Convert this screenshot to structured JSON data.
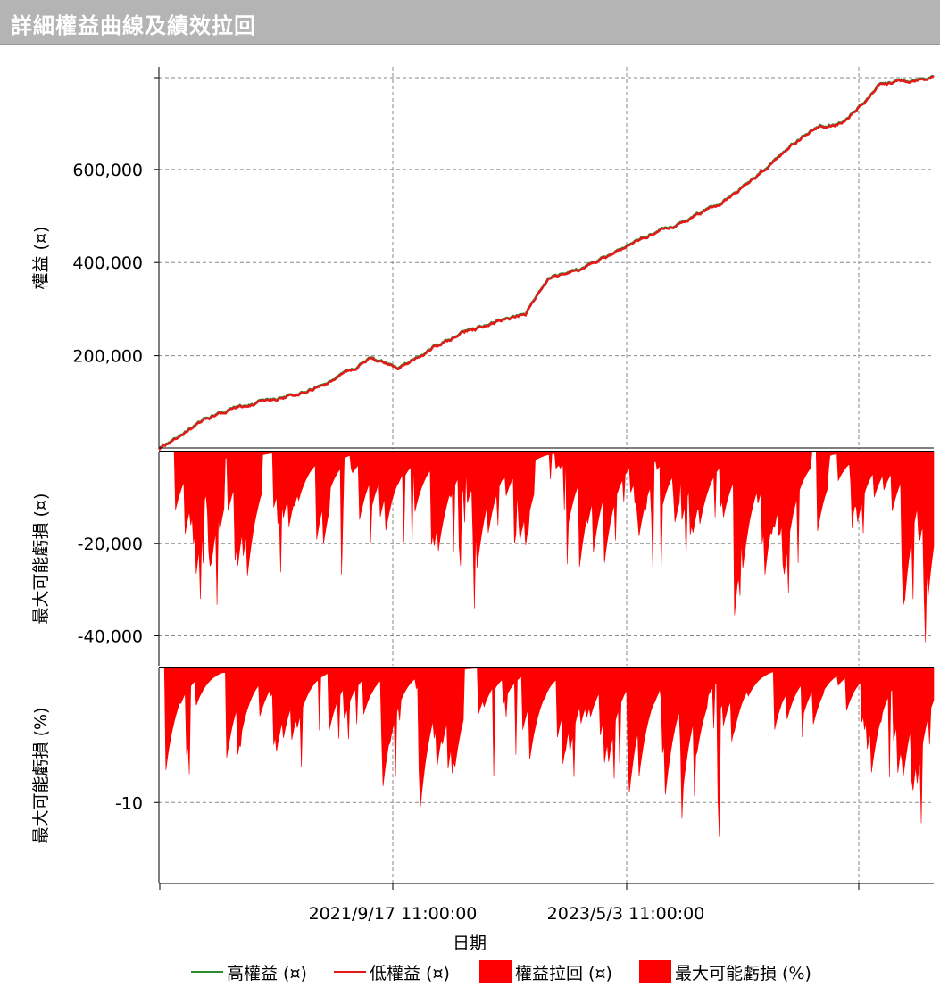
{
  "window": {
    "title": "詳細權益曲線及績效拉回"
  },
  "colors": {
    "equity_high": "#2e8b2e",
    "equity_low": "#e41a1a",
    "drawdown_fill": "#ff0000",
    "grid": "#8a8a8a",
    "axis": "#000000"
  },
  "chart_data": [
    {
      "panel": "equity",
      "type": "line",
      "ylabel": "權益 (¤)",
      "ylim": [
        0,
        820000
      ],
      "yticks": [
        200000,
        400000,
        600000
      ],
      "ytick_labels": [
        "200,000",
        "400,000",
        "600,000"
      ],
      "xlim": [
        "2020-01-19",
        "2026-02-08"
      ],
      "series": [
        {
          "name": "高權益 (¤)",
          "color": "#2e8b2e"
        },
        {
          "name": "低權益 (¤)",
          "color": "#e41a1a"
        }
      ],
      "x": [
        "2020-01-19",
        "2020-06-01",
        "2020-12-01",
        "2021-06-01",
        "2021-09-17",
        "2021-12-01",
        "2022-06-01",
        "2022-12-01",
        "2023-02-15",
        "2023-05-03",
        "2023-12-01",
        "2024-06-01",
        "2024-11-01",
        "2025-03-01",
        "2025-06-01",
        "2025-09-01",
        "2026-02-08"
      ],
      "values": [
        0,
        65000,
        105000,
        145000,
        195000,
        170000,
        250000,
        290000,
        370000,
        380000,
        465000,
        520000,
        610000,
        690000,
        700000,
        780000,
        800000
      ],
      "grid": true
    },
    {
      "panel": "drawdown_amount",
      "type": "area",
      "ylabel": "最大可能虧損 (¤)",
      "ylim": [
        -46500,
        0
      ],
      "yticks": [
        -20000,
        -40000
      ],
      "ytick_labels": [
        "-20,000",
        "-40,000"
      ],
      "series": [
        {
          "name": "權益拉回 (¤)",
          "color": "#ff0000"
        }
      ],
      "grid": true
    },
    {
      "panel": "drawdown_percent",
      "type": "area",
      "ylabel": "最大可能虧損 (%)",
      "ylim": [
        -16,
        0
      ],
      "yticks": [
        -10
      ],
      "ytick_labels": [
        "-10"
      ],
      "series": [
        {
          "name": "最大可能虧損 (%)",
          "color": "#ff0000"
        }
      ],
      "xlabel": "日期",
      "xtick_labels": [
        "2021/9/17 11:00:00",
        "2023/5/3 11:00:00"
      ],
      "grid": true
    }
  ],
  "legend": [
    {
      "label": "高權益 (¤)",
      "kind": "line",
      "color": "#2e8b2e"
    },
    {
      "label": "低權益 (¤)",
      "kind": "line",
      "color": "#e41a1a"
    },
    {
      "label": "權益拉回 (¤)",
      "kind": "box",
      "color": "#ff0000"
    },
    {
      "label": "最大可能虧損 (%)",
      "kind": "box",
      "color": "#ff0000"
    }
  ]
}
